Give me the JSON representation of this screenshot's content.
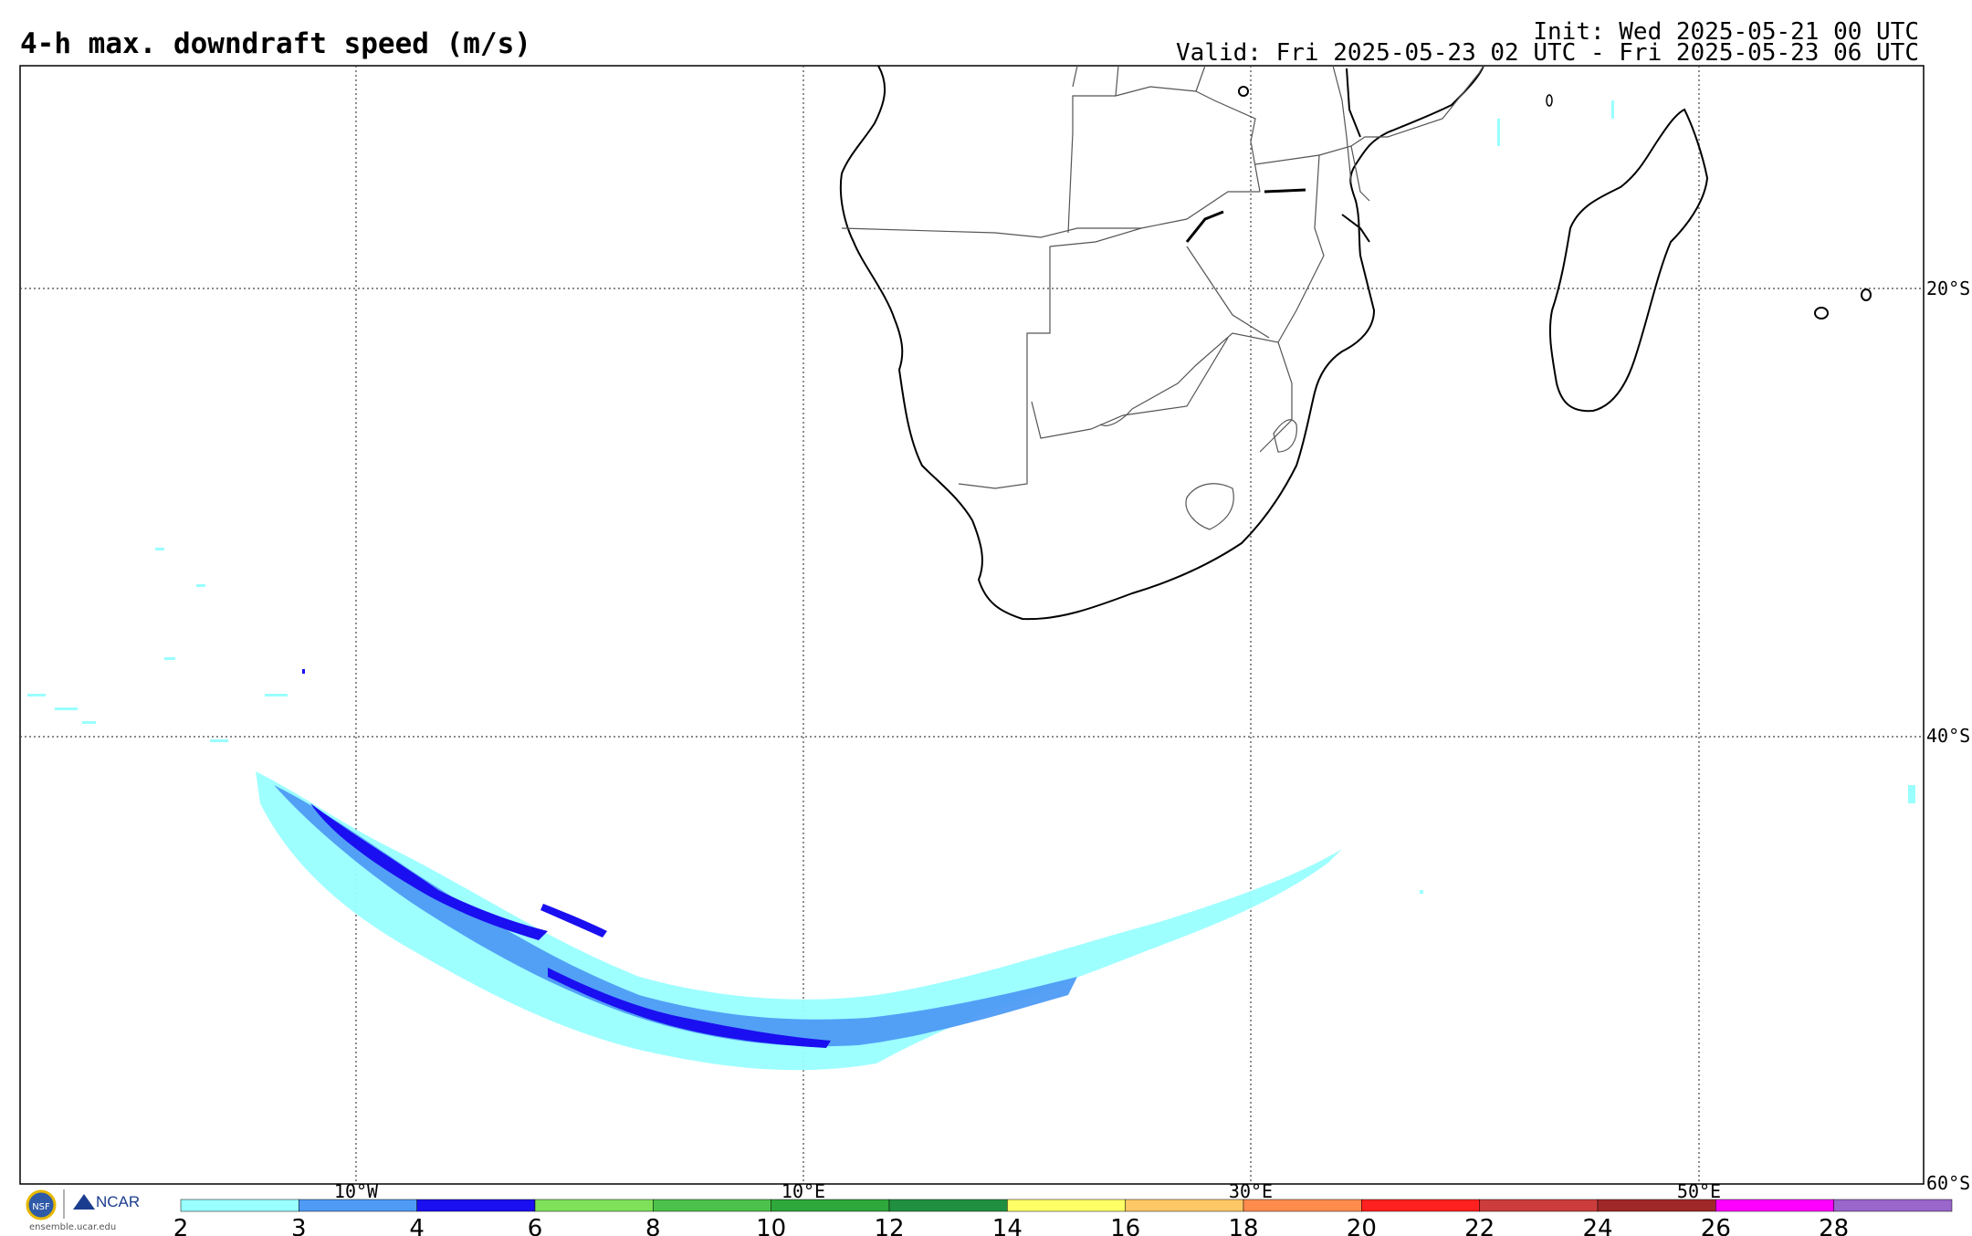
{
  "header": {
    "title": "4-h max. downdraft speed (m/s)",
    "init": "Init: Wed 2025-05-21 00 UTC",
    "valid": "Valid: Fri 2025-05-23 02 UTC - Fri 2025-05-23 06 UTC"
  },
  "map": {
    "region": "Southern Africa / South Atlantic / SW Indian Ocean",
    "lat_labels": [
      "20°S",
      "40°S",
      "60°S"
    ],
    "lon_labels": [
      "10°W",
      "10°E",
      "30°E",
      "50°E"
    ],
    "gridline_style": "dotted",
    "coastline_color": "#000000",
    "border_color": "#555555"
  },
  "colorbar": {
    "tick_labels": [
      "2",
      "3",
      "4",
      "6",
      "8",
      "10",
      "12",
      "14",
      "16",
      "18",
      "20",
      "22",
      "24",
      "26",
      "28"
    ],
    "colors": [
      "#99ffff",
      "#4d9bf5",
      "#1a0ff0",
      "#7fe05a",
      "#4cc24a",
      "#2ea83a",
      "#209040",
      "#ffff66",
      "#ffc866",
      "#ff8c4d",
      "#ff2020",
      "#cc3c3c",
      "#a02828",
      "#ff00ff",
      "#9966cc"
    ]
  },
  "branding": {
    "org": "NCAR",
    "url": "ensemble.ucar.edu"
  }
}
